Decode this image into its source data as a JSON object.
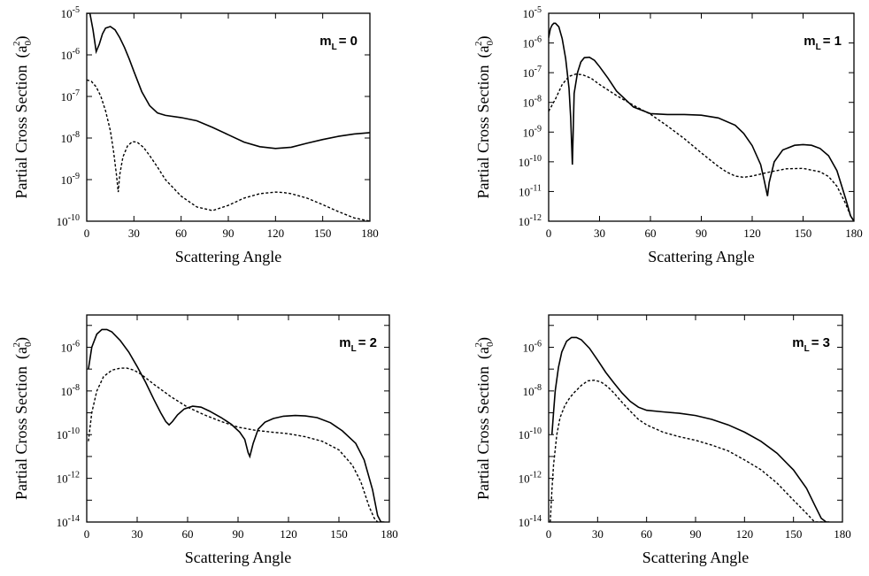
{
  "chart_data": [
    {
      "type": "line",
      "panel_label": "m_L = 0",
      "label_main": "m",
      "label_sub": "L",
      "label_value": "= 0",
      "xlabel": "Scattering Angle",
      "ylabel": "Partial Cross Section",
      "ylabel_unit_base": "(a",
      "ylabel_unit_sub": "0",
      "ylabel_unit_sup": "2",
      "ylabel_unit_close": ")",
      "xlim": [
        0,
        180
      ],
      "ylim": [
        1e-10,
        1e-05
      ],
      "ylog": true,
      "xticks": [
        0,
        30,
        60,
        90,
        120,
        150,
        180
      ],
      "yticks": [
        {
          "value": 1e-10,
          "base": "10",
          "exp": "-10"
        },
        {
          "value": 1e-09,
          "base": "10",
          "exp": "-9"
        },
        {
          "value": 1e-08,
          "base": "10",
          "exp": "-8"
        },
        {
          "value": 1e-07,
          "base": "10",
          "exp": "-7"
        },
        {
          "value": 1e-06,
          "base": "10",
          "exp": "-6"
        },
        {
          "value": 1e-05,
          "base": "10",
          "exp": "-5"
        }
      ],
      "series": [
        {
          "style": "solid",
          "x": [
            0,
            2,
            4,
            6,
            8,
            10,
            12,
            15,
            18,
            21,
            24,
            27,
            30,
            35,
            40,
            45,
            50,
            60,
            70,
            80,
            90,
            100,
            110,
            120,
            130,
            140,
            150,
            160,
            170,
            180
          ],
          "y": [
            1e-05,
            1e-05,
            4e-06,
            1.2e-06,
            1.8e-06,
            3.2e-06,
            4.4e-06,
            4.8e-06,
            4e-06,
            2.6e-06,
            1.5e-06,
            8e-07,
            4e-07,
            1.3e-07,
            6e-08,
            4e-08,
            3.5e-08,
            3.1e-08,
            2.6e-08,
            1.8e-08,
            1.2e-08,
            8e-09,
            6.2e-09,
            5.6e-09,
            6e-09,
            7.5e-09,
            9.2e-09,
            1.1e-08,
            1.25e-08,
            1.35e-08
          ]
        },
        {
          "style": "dashed",
          "x": [
            0,
            3,
            6,
            9,
            12,
            15,
            17,
            19,
            20,
            21,
            23,
            26,
            29,
            32,
            36,
            40,
            45,
            50,
            60,
            70,
            80,
            90,
            100,
            110,
            120,
            125,
            130,
            140,
            150,
            160,
            170,
            180
          ],
          "y": [
            2.5e-07,
            2.3e-07,
            1.7e-07,
            1e-07,
            4.5e-08,
            1.5e-08,
            5e-09,
            1.2e-09,
            5e-10,
            1.3e-09,
            3.5e-09,
            6.5e-09,
            8.2e-09,
            8e-09,
            6e-09,
            3.8e-09,
            2e-09,
            1e-09,
            4e-10,
            2.2e-10,
            1.8e-10,
            2.4e-10,
            3.6e-10,
            4.6e-10,
            5e-10,
            4.9e-10,
            4.6e-10,
            3.6e-10,
            2.5e-10,
            1.7e-10,
            1.2e-10,
            9e-11
          ]
        }
      ]
    },
    {
      "type": "line",
      "panel_label": "m_L = 1",
      "label_main": "m",
      "label_sub": "L",
      "label_value": "= 1",
      "xlabel": "Scattering Angle",
      "ylabel": "Partial Cross Section",
      "ylabel_unit_base": "(a",
      "ylabel_unit_sub": "0",
      "ylabel_unit_sup": "2",
      "ylabel_unit_close": ")",
      "xlim": [
        0,
        180
      ],
      "ylim": [
        1e-12,
        1e-05
      ],
      "ylog": true,
      "xticks": [
        0,
        30,
        60,
        90,
        120,
        150,
        180
      ],
      "yticks": [
        {
          "value": 1e-12,
          "base": "10",
          "exp": "-12"
        },
        {
          "value": 1e-11,
          "base": "10",
          "exp": "-11"
        },
        {
          "value": 1e-10,
          "base": "10",
          "exp": "-10"
        },
        {
          "value": 1e-09,
          "base": "10",
          "exp": "-9"
        },
        {
          "value": 1e-08,
          "base": "10",
          "exp": "-8"
        },
        {
          "value": 1e-07,
          "base": "10",
          "exp": "-7"
        },
        {
          "value": 1e-06,
          "base": "10",
          "exp": "-6"
        },
        {
          "value": 1e-05,
          "base": "10",
          "exp": "-5"
        }
      ],
      "series": [
        {
          "style": "solid",
          "x": [
            0,
            1,
            2,
            3,
            4,
            6,
            8,
            10,
            12,
            13,
            14,
            15,
            17,
            19,
            21,
            24,
            27,
            30,
            35,
            40,
            50,
            60,
            70,
            80,
            90,
            100,
            110,
            115,
            120,
            125,
            127,
            129,
            130,
            133,
            138,
            145,
            150,
            155,
            160,
            165,
            170,
            175,
            178,
            180
          ],
          "y": [
            1.5e-06,
            3e-06,
            4e-06,
            4.6e-06,
            4.6e-06,
            3.5e-06,
            1.4e-06,
            3e-07,
            3e-08,
            3e-09,
            8e-11,
            2e-08,
            1e-07,
            2.3e-07,
            3.2e-07,
            3.3e-07,
            2.6e-07,
            1.6e-07,
            6.5e-08,
            2.4e-08,
            7e-09,
            4.2e-09,
            3.9e-09,
            3.9e-09,
            3.7e-09,
            3e-09,
            1.7e-09,
            9e-10,
            3.5e-10,
            8e-11,
            2.5e-11,
            7e-12,
            2e-11,
            1e-10,
            2.5e-10,
            3.6e-10,
            3.8e-10,
            3.6e-10,
            2.8e-10,
            1.6e-10,
            5e-11,
            6e-12,
            1.5e-12,
            1e-12
          ]
        },
        {
          "style": "dashed",
          "x": [
            0,
            4,
            8,
            12,
            16,
            20,
            25,
            30,
            40,
            50,
            60,
            70,
            80,
            90,
            100,
            105,
            110,
            115,
            120,
            130,
            140,
            150,
            160,
            165,
            170,
            175,
            178,
            180
          ],
          "y": [
            5e-09,
            1.3e-08,
            4e-08,
            7.5e-08,
            9e-08,
            8.5e-08,
            6.5e-08,
            4e-08,
            1.7e-08,
            8e-09,
            4e-09,
            1.6e-09,
            6e-10,
            2e-10,
            7e-11,
            4.5e-11,
            3.3e-11,
            3e-11,
            3.3e-11,
            4.5e-11,
            5.8e-11,
            6e-11,
            4.6e-11,
            3.2e-11,
            1.5e-11,
            4e-12,
            1.5e-12,
            1e-12
          ]
        }
      ]
    },
    {
      "type": "line",
      "panel_label": "m_L = 2",
      "label_main": "m",
      "label_sub": "L",
      "label_value": "= 2",
      "xlabel": "Scattering Angle",
      "ylabel": "Partial Cross Section",
      "ylabel_unit_base": "(a",
      "ylabel_unit_sub": "0",
      "ylabel_unit_sup": "2",
      "ylabel_unit_close": ")",
      "xlim": [
        0,
        180
      ],
      "ylim": [
        1e-14,
        3e-05
      ],
      "ylog": true,
      "xticks": [
        0,
        30,
        60,
        90,
        120,
        150,
        180
      ],
      "yticks": [
        {
          "value": 1e-14,
          "base": "10",
          "exp": "-14"
        },
        {
          "value": 1e-12,
          "base": "10",
          "exp": "-12"
        },
        {
          "value": 1e-10,
          "base": "10",
          "exp": "-10"
        },
        {
          "value": 1e-08,
          "base": "10",
          "exp": "-8"
        },
        {
          "value": 1e-06,
          "base": "10",
          "exp": "-6"
        }
      ],
      "series": [
        {
          "style": "solid",
          "x": [
            1,
            3,
            6,
            9,
            12,
            15,
            20,
            25,
            30,
            35,
            40,
            44,
            47,
            49,
            51,
            54,
            58,
            63,
            68,
            73,
            80,
            86,
            91,
            94,
            96,
            97,
            99,
            102,
            106,
            111,
            117,
            124,
            130,
            137,
            145,
            152,
            160,
            165,
            170,
            173,
            175,
            177
          ],
          "y": [
            1e-07,
            1e-06,
            4e-06,
            6.5e-06,
            6.5e-06,
            5e-06,
            2e-06,
            6e-07,
            1.3e-07,
            2.5e-08,
            4e-09,
            1e-09,
            4e-10,
            2.8e-10,
            4e-10,
            8e-10,
            1.5e-09,
            2e-09,
            1.8e-09,
            1.2e-09,
            6e-10,
            3e-10,
            1.3e-10,
            6e-11,
            1.5e-11,
            1e-11,
            4e-11,
            1.8e-10,
            3.7e-10,
            5.5e-10,
            7e-10,
            7.5e-10,
            7.2e-10,
            6e-10,
            3.5e-10,
            1.5e-10,
            4e-11,
            7e-12,
            3e-13,
            2e-14,
            8e-15,
            5e-15
          ]
        },
        {
          "style": "dashed",
          "x": [
            1,
            3,
            6,
            10,
            15,
            20,
            24,
            28,
            32,
            36,
            40,
            50,
            60,
            70,
            80,
            90,
            100,
            110,
            120,
            130,
            140,
            150,
            158,
            163,
            168,
            171,
            173,
            175,
            176
          ],
          "y": [
            5e-11,
            1e-09,
            1e-08,
            4.5e-08,
            9e-08,
            1.1e-07,
            1.1e-07,
            9e-08,
            6e-08,
            3.5e-08,
            2e-08,
            5.5e-09,
            1.8e-09,
            8e-10,
            4e-10,
            2.2e-10,
            1.6e-10,
            1.3e-10,
            1.1e-10,
            8e-11,
            5e-11,
            2e-11,
            4e-12,
            7e-13,
            5e-14,
            1.5e-14,
            8e-15,
            5e-15,
            5e-15
          ]
        }
      ]
    },
    {
      "type": "line",
      "panel_label": "m_L = 3",
      "label_main": "m",
      "label_sub": "L",
      "label_value": "= 3",
      "xlabel": "Scattering Angle",
      "ylabel": "Partial Cross Section",
      "ylabel_unit_base": "(a",
      "ylabel_unit_sub": "0",
      "ylabel_unit_sup": "2",
      "ylabel_unit_close": ")",
      "xlim": [
        0,
        180
      ],
      "ylim": [
        1e-14,
        3e-05
      ],
      "ylog": true,
      "xticks": [
        0,
        30,
        60,
        90,
        120,
        150,
        180
      ],
      "yticks": [
        {
          "value": 1e-14,
          "base": "10",
          "exp": "-14"
        },
        {
          "value": 1e-12,
          "base": "10",
          "exp": "-12"
        },
        {
          "value": 1e-10,
          "base": "10",
          "exp": "-10"
        },
        {
          "value": 1e-08,
          "base": "10",
          "exp": "-8"
        },
        {
          "value": 1e-06,
          "base": "10",
          "exp": "-6"
        }
      ],
      "series": [
        {
          "style": "solid",
          "x": [
            2,
            3,
            4,
            6,
            8,
            11,
            14,
            17,
            20,
            25,
            30,
            35,
            40,
            45,
            50,
            55,
            60,
            70,
            80,
            90,
            100,
            110,
            120,
            130,
            140,
            150,
            158,
            163,
            167,
            170,
            172
          ],
          "y": [
            1e-10,
            1e-09,
            1e-08,
            1.2e-07,
            6e-07,
            1.9e-06,
            2.8e-06,
            2.8e-06,
            2.2e-06,
            9e-07,
            2.6e-07,
            7e-08,
            2.3e-08,
            8e-09,
            3.3e-09,
            1.8e-09,
            1.3e-09,
            1.1e-09,
            9.5e-10,
            7.5e-10,
            5e-10,
            2.8e-10,
            1.3e-10,
            5e-11,
            1.4e-11,
            2.4e-12,
            3.5e-13,
            6e-14,
            1.5e-14,
            8e-15,
            5e-15
          ]
        },
        {
          "style": "dashed",
          "x": [
            1,
            2,
            3,
            5,
            7,
            10,
            13,
            16,
            20,
            24,
            28,
            32,
            36,
            40,
            45,
            50,
            55,
            60,
            70,
            80,
            90,
            100,
            110,
            120,
            130,
            140,
            150,
            158,
            163,
            166,
            168
          ],
          "y": [
            1e-14,
            3e-13,
            4e-12,
            1e-10,
            6e-10,
            2.2e-09,
            5e-09,
            9e-09,
            1.8e-08,
            2.9e-08,
            3.1e-08,
            2.6e-08,
            1.6e-08,
            8e-09,
            3e-09,
            1.2e-09,
            5e-10,
            2.8e-10,
            1.3e-10,
            8e-11,
            5.5e-11,
            3.3e-11,
            1.8e-11,
            7e-12,
            2.5e-12,
            6e-13,
            1e-13,
            2.5e-14,
            1e-14,
            6e-15,
            5e-15
          ]
        }
      ]
    }
  ]
}
